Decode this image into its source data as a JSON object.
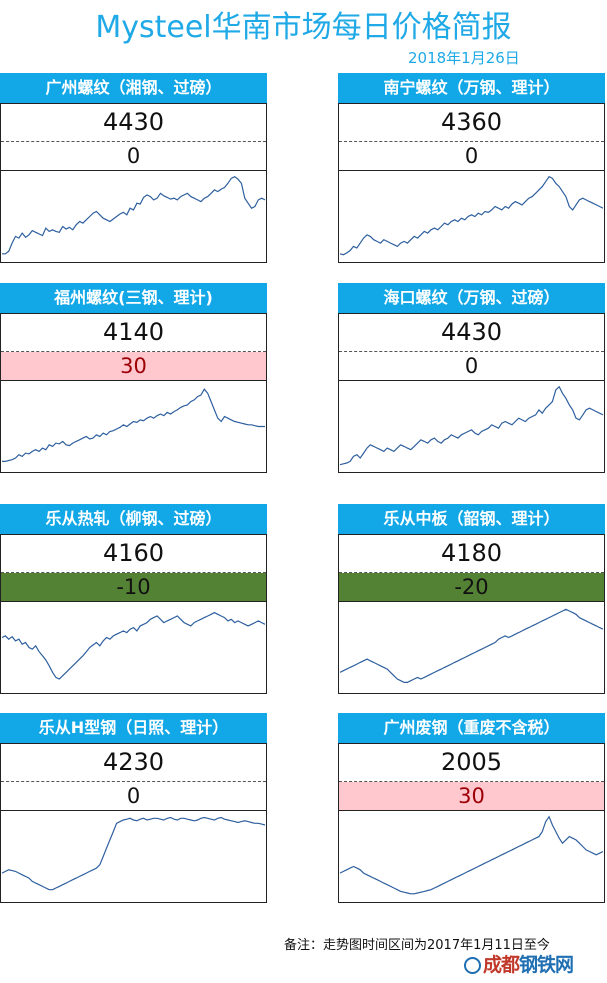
{
  "header": {
    "title": "Mysteel华南市场每日价格简报",
    "date": "2018年1月26日"
  },
  "cards": [
    {
      "name": "广州螺纹（湘钢、过磅）",
      "price": "4430",
      "change": "0",
      "trend": "flat"
    },
    {
      "name": "南宁螺纹（万钢、理计）",
      "price": "4360",
      "change": "0",
      "trend": "flat"
    },
    {
      "name": "福州螺纹(三钢、理计)",
      "price": "4140",
      "change": "30",
      "trend": "up"
    },
    {
      "name": "海口螺纹（万钢、过磅）",
      "price": "4430",
      "change": "0",
      "trend": "flat"
    },
    {
      "name": "乐从热轧（柳钢、过磅）",
      "price": "4160",
      "change": "-10",
      "trend": "down"
    },
    {
      "name": "乐从中板（韶钢、理计）",
      "price": "4180",
      "change": "-20",
      "trend": "down"
    },
    {
      "name": "乐从H型钢（日照、理计）",
      "price": "4230",
      "change": "0",
      "trend": "flat"
    },
    {
      "name": "广州废钢（重废不含税）",
      "price": "2005",
      "change": "30",
      "trend": "up"
    }
  ],
  "chart_data": [
    {
      "type": "line",
      "series": [
        {
          "values": [
            5,
            5,
            8,
            18,
            26,
            24,
            30,
            25,
            28,
            33,
            31,
            29,
            27,
            36,
            32,
            34,
            32,
            31,
            38,
            35,
            37,
            34,
            40,
            44,
            42,
            46,
            50,
            54,
            56,
            52,
            48,
            46,
            44,
            47,
            50,
            53,
            55,
            52,
            60,
            58,
            66,
            65,
            73,
            76,
            74,
            70,
            72,
            78,
            75,
            73,
            71,
            72,
            70,
            74,
            76,
            78,
            74,
            72,
            70,
            68,
            72,
            74,
            78,
            82,
            80,
            83,
            85,
            90,
            96,
            98,
            95,
            90,
            72,
            66,
            60,
            62,
            70,
            72,
            70
          ]
        }
      ]
    },
    {
      "type": "line",
      "series": [
        {
          "values": [
            5,
            4,
            6,
            9,
            14,
            12,
            18,
            24,
            28,
            26,
            22,
            20,
            18,
            22,
            20,
            18,
            16,
            14,
            18,
            20,
            18,
            22,
            26,
            24,
            28,
            32,
            30,
            34,
            36,
            34,
            38,
            42,
            40,
            44,
            46,
            44,
            48,
            46,
            50,
            52,
            50,
            54,
            52,
            56,
            55,
            58,
            62,
            60,
            58,
            62,
            60,
            65,
            68,
            66,
            64,
            68,
            72,
            74,
            78,
            82,
            86,
            92,
            98,
            96,
            90,
            86,
            80,
            74,
            62,
            58,
            64,
            70,
            72,
            70,
            68,
            66,
            64,
            62,
            60
          ]
        }
      ]
    },
    {
      "type": "line",
      "series": [
        {
          "values": [
            8,
            8,
            9,
            10,
            12,
            16,
            14,
            18,
            17,
            20,
            22,
            20,
            24,
            22,
            28,
            26,
            30,
            29,
            32,
            28,
            27,
            30,
            32,
            34,
            36,
            38,
            35,
            36,
            40,
            38,
            42,
            40,
            44,
            45,
            47,
            49,
            52,
            50,
            53,
            56,
            55,
            58,
            57,
            60,
            62,
            60,
            63,
            65,
            63,
            67,
            65,
            68,
            70,
            73,
            75,
            76,
            80,
            82,
            86,
            88,
            95,
            90,
            80,
            70,
            60,
            56,
            62,
            60,
            58,
            56,
            55,
            54,
            53,
            52,
            52,
            51,
            50,
            50,
            50
          ]
        }
      ]
    },
    {
      "type": "line",
      "series": [
        {
          "values": [
            4,
            5,
            6,
            8,
            14,
            16,
            12,
            18,
            24,
            28,
            26,
            24,
            22,
            20,
            24,
            22,
            20,
            24,
            28,
            26,
            24,
            22,
            26,
            30,
            34,
            32,
            30,
            34,
            36,
            32,
            30,
            34,
            36,
            40,
            38,
            36,
            40,
            42,
            44,
            46,
            42,
            40,
            44,
            46,
            48,
            52,
            50,
            48,
            54,
            56,
            54,
            52,
            56,
            60,
            58,
            56,
            60,
            62,
            64,
            70,
            66,
            72,
            76,
            80,
            94,
            98,
            90,
            84,
            76,
            70,
            60,
            58,
            64,
            70,
            72,
            70,
            68,
            66,
            64
          ]
        }
      ]
    },
    {
      "type": "line",
      "series": [
        {
          "values": [
            62,
            64,
            60,
            63,
            58,
            60,
            54,
            56,
            50,
            48,
            52,
            45,
            40,
            35,
            28,
            20,
            14,
            12,
            16,
            20,
            24,
            28,
            32,
            36,
            40,
            45,
            50,
            53,
            56,
            52,
            58,
            62,
            60,
            64,
            66,
            68,
            70,
            68,
            72,
            74,
            70,
            76,
            78,
            80,
            84,
            86,
            88,
            84,
            80,
            82,
            84,
            86,
            88,
            84,
            80,
            78,
            76,
            80,
            82,
            84,
            86,
            88,
            90,
            92,
            90,
            88,
            86,
            82,
            84,
            80,
            82,
            80,
            78,
            76,
            78,
            80,
            82,
            80,
            78
          ]
        }
      ]
    },
    {
      "type": "line",
      "series": [
        {
          "values": [
            20,
            22,
            24,
            26,
            28,
            30,
            32,
            34,
            36,
            34,
            32,
            30,
            28,
            26,
            24,
            20,
            16,
            12,
            10,
            8,
            8,
            10,
            12,
            14,
            12,
            14,
            16,
            18,
            20,
            22,
            24,
            26,
            28,
            30,
            32,
            34,
            36,
            38,
            40,
            42,
            44,
            46,
            48,
            50,
            52,
            54,
            56,
            60,
            62,
            64,
            62,
            64,
            66,
            68,
            70,
            72,
            74,
            76,
            78,
            80,
            82,
            84,
            86,
            88,
            90,
            92,
            94,
            96,
            94,
            92,
            90,
            86,
            84,
            82,
            80,
            78,
            76,
            74,
            72
          ]
        }
      ]
    },
    {
      "type": "line",
      "series": [
        {
          "values": [
            30,
            32,
            34,
            33,
            32,
            30,
            28,
            26,
            24,
            20,
            18,
            16,
            14,
            12,
            10,
            10,
            12,
            14,
            16,
            18,
            20,
            22,
            24,
            26,
            28,
            30,
            32,
            34,
            36,
            40,
            50,
            60,
            70,
            80,
            90,
            92,
            94,
            95,
            96,
            94,
            93,
            95,
            96,
            94,
            95,
            96,
            96,
            95,
            94,
            96,
            97,
            95,
            94,
            96,
            96,
            95,
            94,
            93,
            94,
            96,
            97,
            96,
            95,
            94,
            96,
            97,
            95,
            94,
            93,
            92,
            91,
            92,
            93,
            92,
            91,
            90,
            90,
            89,
            88
          ]
        }
      ]
    },
    {
      "type": "line",
      "series": [
        {
          "values": [
            30,
            32,
            34,
            36,
            38,
            36,
            34,
            30,
            28,
            26,
            24,
            22,
            20,
            18,
            16,
            14,
            12,
            10,
            8,
            7,
            6,
            5,
            5,
            6,
            7,
            8,
            9,
            10,
            12,
            14,
            16,
            18,
            20,
            22,
            24,
            26,
            28,
            30,
            32,
            34,
            36,
            38,
            40,
            42,
            44,
            46,
            48,
            50,
            52,
            54,
            56,
            58,
            60,
            62,
            64,
            66,
            68,
            70,
            72,
            74,
            80,
            92,
            98,
            88,
            80,
            72,
            66,
            70,
            74,
            72,
            70,
            66,
            62,
            58,
            56,
            54,
            52,
            54,
            56
          ]
        }
      ]
    }
  ],
  "footer": {
    "note": "备注：走势图时间区间为2017年1月11日至今",
    "logo_main": "成都",
    "logo_sub": "钢铁网"
  }
}
